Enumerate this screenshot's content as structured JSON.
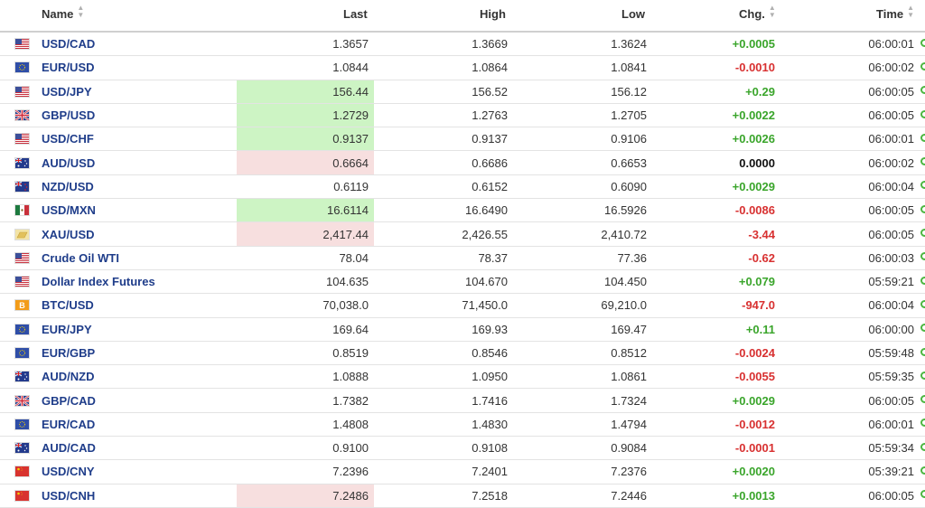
{
  "columns": {
    "name": "Name",
    "last": "Last",
    "high": "High",
    "low": "Low",
    "chg": "Chg.",
    "time": "Time"
  },
  "colors": {
    "positive": "#3aa52b",
    "negative": "#d83131",
    "up_flash": "#cdf4c4",
    "down_flash": "#f7dfdf",
    "link": "#1f3d8a",
    "status_dot": "#4cb640"
  },
  "rows": [
    {
      "flag": "us-flag-icon",
      "name": "USD/CAD",
      "last": "1.3657",
      "high": "1.3669",
      "low": "1.3624",
      "chg": "+0.0005",
      "dir": "pos",
      "flash": "none",
      "time": "06:00:01"
    },
    {
      "flag": "eu-flag-icon",
      "name": "EUR/USD",
      "last": "1.0844",
      "high": "1.0864",
      "low": "1.0841",
      "chg": "-0.0010",
      "dir": "neg",
      "flash": "none",
      "time": "06:00:02"
    },
    {
      "flag": "us-flag-icon",
      "name": "USD/JPY",
      "last": "156.44",
      "high": "156.52",
      "low": "156.12",
      "chg": "+0.29",
      "dir": "pos",
      "flash": "up",
      "time": "06:00:05"
    },
    {
      "flag": "uk-flag-icon",
      "name": "GBP/USD",
      "last": "1.2729",
      "high": "1.2763",
      "low": "1.2705",
      "chg": "+0.0022",
      "dir": "pos",
      "flash": "up",
      "time": "06:00:05"
    },
    {
      "flag": "us-flag-icon",
      "name": "USD/CHF",
      "last": "0.9137",
      "high": "0.9137",
      "low": "0.9106",
      "chg": "+0.0026",
      "dir": "pos",
      "flash": "up",
      "time": "06:00:01"
    },
    {
      "flag": "au-flag-icon",
      "name": "AUD/USD",
      "last": "0.6664",
      "high": "0.6686",
      "low": "0.6653",
      "chg": "0.0000",
      "dir": "zero",
      "flash": "down",
      "time": "06:00:02"
    },
    {
      "flag": "nz-flag-icon",
      "name": "NZD/USD",
      "last": "0.6119",
      "high": "0.6152",
      "low": "0.6090",
      "chg": "+0.0029",
      "dir": "pos",
      "flash": "none",
      "time": "06:00:04"
    },
    {
      "flag": "mx-flag-icon",
      "name": "USD/MXN",
      "last": "16.6114",
      "high": "16.6490",
      "low": "16.5926",
      "chg": "-0.0086",
      "dir": "neg",
      "flash": "up",
      "time": "06:00:05"
    },
    {
      "flag": "gold-icon",
      "name": "XAU/USD",
      "last": "2,417.44",
      "high": "2,426.55",
      "low": "2,410.72",
      "chg": "-3.44",
      "dir": "neg",
      "flash": "down",
      "time": "06:00:05"
    },
    {
      "flag": "us-flag-icon",
      "name": "Crude Oil WTI",
      "last": "78.04",
      "high": "78.37",
      "low": "77.36",
      "chg": "-0.62",
      "dir": "neg",
      "flash": "none",
      "time": "06:00:03"
    },
    {
      "flag": "us-flag-icon",
      "name": "Dollar Index Futures",
      "last": "104.635",
      "high": "104.670",
      "low": "104.450",
      "chg": "+0.079",
      "dir": "pos",
      "flash": "none",
      "time": "05:59:21"
    },
    {
      "flag": "bitcoin-icon",
      "name": "BTC/USD",
      "last": "70,038.0",
      "high": "71,450.0",
      "low": "69,210.0",
      "chg": "-947.0",
      "dir": "neg",
      "flash": "none",
      "time": "06:00:04"
    },
    {
      "flag": "eu-flag-icon",
      "name": "EUR/JPY",
      "last": "169.64",
      "high": "169.93",
      "low": "169.47",
      "chg": "+0.11",
      "dir": "pos",
      "flash": "none",
      "time": "06:00:00"
    },
    {
      "flag": "eu-flag-icon",
      "name": "EUR/GBP",
      "last": "0.8519",
      "high": "0.8546",
      "low": "0.8512",
      "chg": "-0.0024",
      "dir": "neg",
      "flash": "none",
      "time": "05:59:48"
    },
    {
      "flag": "au-flag-icon",
      "name": "AUD/NZD",
      "last": "1.0888",
      "high": "1.0950",
      "low": "1.0861",
      "chg": "-0.0055",
      "dir": "neg",
      "flash": "none",
      "time": "05:59:35"
    },
    {
      "flag": "uk-flag-icon",
      "name": "GBP/CAD",
      "last": "1.7382",
      "high": "1.7416",
      "low": "1.7324",
      "chg": "+0.0029",
      "dir": "pos",
      "flash": "none",
      "time": "06:00:05"
    },
    {
      "flag": "eu-flag-icon",
      "name": "EUR/CAD",
      "last": "1.4808",
      "high": "1.4830",
      "low": "1.4794",
      "chg": "-0.0012",
      "dir": "neg",
      "flash": "none",
      "time": "06:00:01"
    },
    {
      "flag": "au-flag-icon",
      "name": "AUD/CAD",
      "last": "0.9100",
      "high": "0.9108",
      "low": "0.9084",
      "chg": "-0.0001",
      "dir": "neg",
      "flash": "none",
      "time": "05:59:34"
    },
    {
      "flag": "cn-flag-icon",
      "name": "USD/CNY",
      "last": "7.2396",
      "high": "7.2401",
      "low": "7.2376",
      "chg": "+0.0020",
      "dir": "pos",
      "flash": "none",
      "time": "05:39:21"
    },
    {
      "flag": "cn-flag-icon",
      "name": "USD/CNH",
      "last": "7.2486",
      "high": "7.2518",
      "low": "7.2446",
      "chg": "+0.0013",
      "dir": "pos",
      "flash": "down",
      "time": "06:00:05"
    }
  ]
}
